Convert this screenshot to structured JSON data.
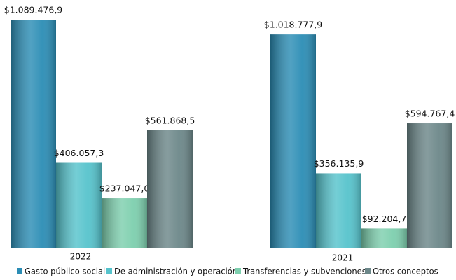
{
  "chart_data": {
    "type": "bar",
    "categories": [
      "2022",
      "2021"
    ],
    "series": [
      {
        "name": "Gasto público social",
        "color": "#2b8db5",
        "values": [
          1089476.9,
          1018777.9
        ],
        "value_labels": [
          "$1.089.476,9",
          "$1.018.777,9"
        ]
      },
      {
        "name": "De administración y operación",
        "color": "#56c3cc",
        "values": [
          406057.3,
          356135.9
        ],
        "value_labels": [
          "$406.057,3",
          "$356.135,9"
        ]
      },
      {
        "name": "Transferencias y subvenciones",
        "color": "#7dcfae",
        "values": [
          237047.0,
          92204.7
        ],
        "value_labels": [
          "$237.047,0",
          "$92.204,7"
        ]
      },
      {
        "name": "Otros conceptos",
        "color": "#6c8789",
        "values": [
          561868.5,
          594767.4
        ],
        "value_labels": [
          "$561.868,5",
          "$594.767,4"
        ]
      }
    ],
    "legend": "bottom"
  }
}
